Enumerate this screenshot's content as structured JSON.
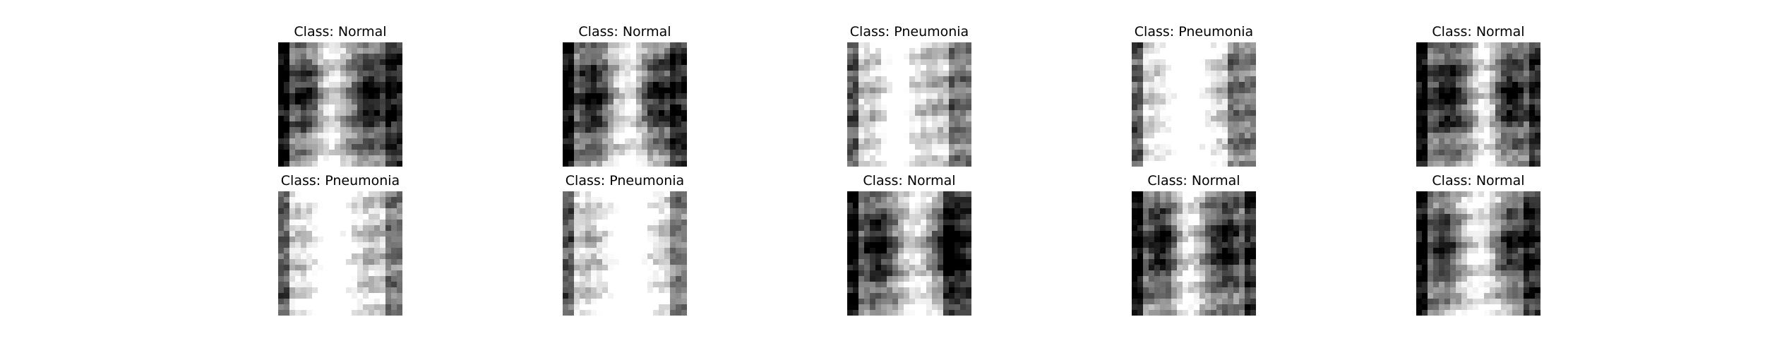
{
  "figure": {
    "panels": [
      {
        "title": "Class: Normal",
        "image": "chest-xray-normal"
      },
      {
        "title": "Class: Normal",
        "image": "chest-xray-normal"
      },
      {
        "title": "Class: Pneumonia",
        "image": "chest-xray-pneumonia"
      },
      {
        "title": "Class: Pneumonia",
        "image": "chest-xray-pneumonia"
      },
      {
        "title": "Class: Normal",
        "image": "chest-xray-normal"
      },
      {
        "title": "Class: Pneumonia",
        "image": "chest-xray-pneumonia"
      },
      {
        "title": "Class: Pneumonia",
        "image": "chest-xray-pneumonia"
      },
      {
        "title": "Class: Normal",
        "image": "chest-xray-normal"
      },
      {
        "title": "Class: Normal",
        "image": "chest-xray-normal"
      },
      {
        "title": "Class: Normal",
        "image": "chest-xray-normal"
      }
    ]
  }
}
